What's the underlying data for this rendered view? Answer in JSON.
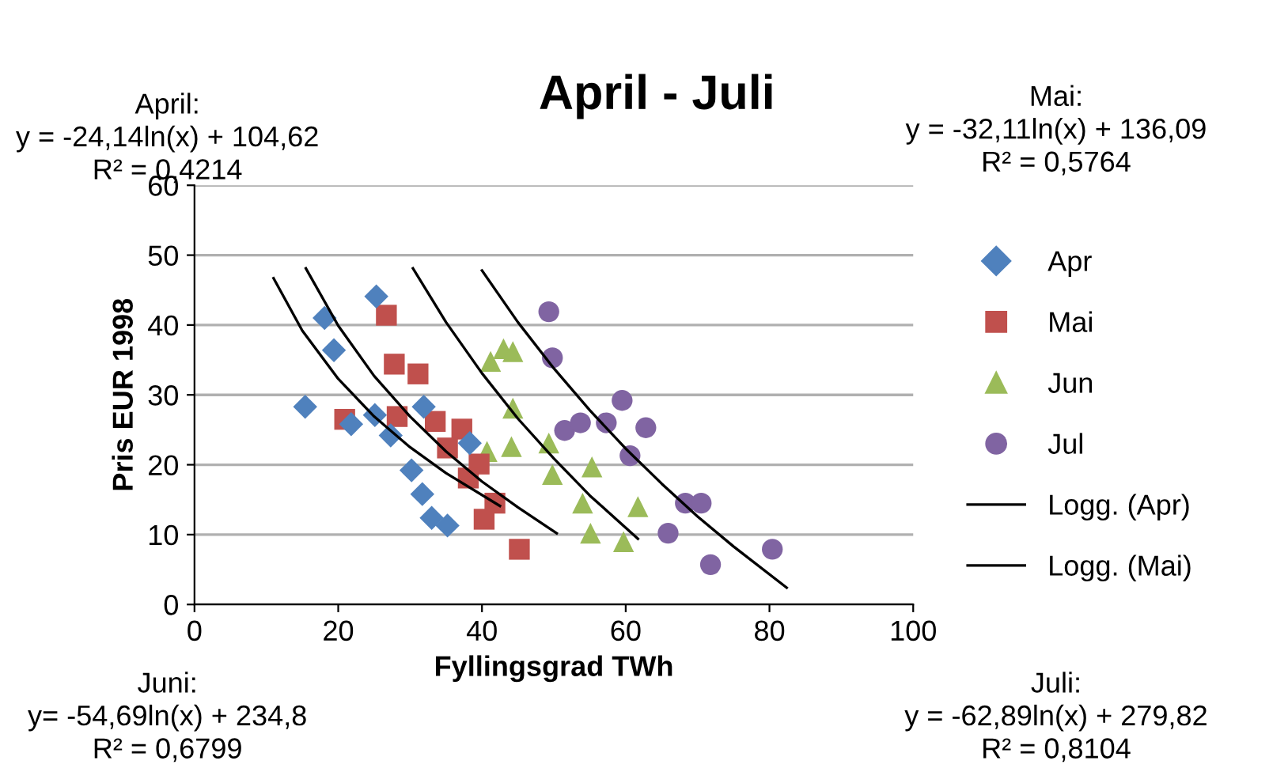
{
  "chart_data": {
    "type": "scatter",
    "title": "April - Juli",
    "xlabel": "Fyllingsgrad TWh",
    "ylabel": "Pris EUR 1998",
    "xlim": [
      0,
      100
    ],
    "xticks": [
      0,
      20,
      40,
      60,
      80,
      100
    ],
    "ylim": [
      0,
      60
    ],
    "yticks": [
      0,
      10,
      20,
      30,
      40,
      50,
      60
    ],
    "grid": "y",
    "legend": "right",
    "annotations": [
      "April:\ny = -24,14ln(x) + 104,62\nR² = 0,4214",
      "Mai:\ny = -32,11ln(x) + 136,09\nR² = 0,5764",
      "Juni:\ny= -54,69ln(x) + 234,8\nR² = 0,6799",
      "Juli:\ny = -62,89ln(x) + 279,82\nR² = 0,8104"
    ],
    "series": [
      {
        "name": "Apr",
        "color": "#4f81bd",
        "marker": "diamond",
        "x": [
          25.3,
          18.1,
          19.4,
          15.4,
          21.8,
          25.1,
          27.3,
          31.9,
          30.2,
          31.7,
          33.0,
          35.2,
          38.3
        ],
        "values": [
          44.1,
          41.0,
          36.4,
          28.3,
          25.8,
          27.1,
          24.2,
          28.3,
          19.2,
          15.8,
          12.4,
          11.3,
          23.1
        ]
      },
      {
        "name": "Mai",
        "color": "#c0504d",
        "marker": "square",
        "x": [
          26.7,
          27.8,
          31.1,
          20.9,
          28.2,
          33.5,
          37.2,
          35.2,
          39.6,
          38.1,
          41.8,
          40.3,
          45.2
        ],
        "values": [
          41.4,
          34.4,
          33.0,
          26.5,
          26.9,
          26.2,
          25.1,
          22.4,
          20.1,
          18.1,
          14.5,
          12.2,
          7.9
        ]
      },
      {
        "name": "Jun",
        "color": "#9bbb59",
        "marker": "triangle",
        "x": [
          41.2,
          43.0,
          44.3,
          44.3,
          40.7,
          44.1,
          49.3,
          49.8,
          55.3,
          54.0,
          55.1,
          59.7,
          61.7
        ],
        "values": [
          34.8,
          36.6,
          36.2,
          28.1,
          21.9,
          22.6,
          23.1,
          18.6,
          19.7,
          14.5,
          10.2,
          9.0,
          14.0
        ]
      },
      {
        "name": "Jul",
        "color": "#8064a2",
        "marker": "circle",
        "x": [
          49.3,
          49.8,
          59.5,
          51.5,
          53.7,
          57.3,
          62.8,
          60.6,
          68.3,
          70.5,
          65.9,
          71.8,
          80.4
        ],
        "values": [
          41.9,
          35.3,
          29.2,
          24.9,
          26.0,
          26.0,
          25.3,
          21.3,
          14.5,
          14.5,
          10.2,
          5.7,
          7.9
        ]
      },
      {
        "name": "Logg. (Apr)",
        "type": "line",
        "color": "#000000",
        "marker": "none",
        "x": [
          11,
          15,
          20,
          25,
          30,
          35,
          42.5
        ],
        "values": [
          46.7,
          39.2,
          32.3,
          26.9,
          22.5,
          18.8,
          14.1
        ]
      },
      {
        "name": "Logg. (Mai)",
        "type": "line",
        "color": "#000000",
        "marker": "none",
        "x": [
          15.5,
          20,
          25,
          30,
          35,
          40,
          45,
          50.4
        ],
        "values": [
          48.1,
          39.9,
          32.7,
          26.9,
          21.9,
          17.6,
          13.9,
          10.2
        ]
      },
      {
        "type": "line",
        "color": "#000000",
        "marker": "none",
        "x": [
          30.4,
          35,
          40,
          45,
          50,
          55,
          61.7
        ],
        "values": [
          48.1,
          40.4,
          33.1,
          26.6,
          20.9,
          15.6,
          9.4
        ]
      },
      {
        "type": "line",
        "color": "#000000",
        "marker": "none",
        "x": [
          40,
          45,
          50,
          55,
          60,
          65,
          70,
          75,
          82.4
        ],
        "values": [
          47.8,
          40.4,
          33.8,
          27.8,
          22.3,
          17.3,
          12.6,
          8.3,
          2.4
        ]
      }
    ]
  }
}
